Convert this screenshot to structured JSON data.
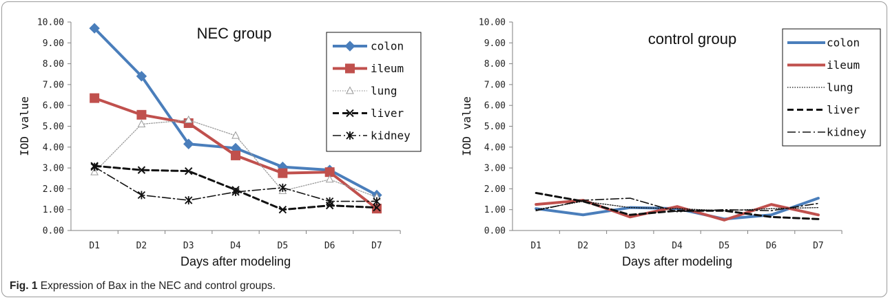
{
  "caption": {
    "label": "Fig. 1",
    "text": " Expression of Bax in the NEC and control groups."
  },
  "chart_data": [
    {
      "type": "line",
      "title": "NEC group",
      "xlabel": "Days after modeling",
      "ylabel": "IOD value",
      "categories": [
        "D1",
        "D2",
        "D3",
        "D4",
        "D5",
        "D6",
        "D7"
      ],
      "ylim": [
        0,
        10
      ],
      "yticks": [
        "0.00",
        "1.00",
        "2.00",
        "3.00",
        "4.00",
        "5.00",
        "6.00",
        "7.00",
        "8.00",
        "9.00",
        "10.00"
      ],
      "grid": false,
      "legend_position": "top-right",
      "series": [
        {
          "name": "colon",
          "values": [
            9.7,
            7.4,
            4.15,
            3.95,
            3.05,
            2.9,
            1.7
          ],
          "color": "#4a7ebb",
          "style": "solid-thick",
          "marker": "diamond"
        },
        {
          "name": "ileum",
          "values": [
            6.35,
            5.55,
            5.15,
            3.6,
            2.75,
            2.8,
            1.05
          ],
          "color": "#c0504d",
          "style": "solid-thick",
          "marker": "square"
        },
        {
          "name": "lung",
          "values": [
            2.8,
            5.1,
            5.3,
            4.55,
            1.9,
            2.45,
            1.6
          ],
          "color": "#9a9a9a",
          "style": "dotted",
          "marker": "triangle"
        },
        {
          "name": "liver",
          "values": [
            3.1,
            2.9,
            2.85,
            1.95,
            1.0,
            1.2,
            1.1
          ],
          "color": "#111111",
          "style": "dashed-thick",
          "marker": "x"
        },
        {
          "name": "kidney",
          "values": [
            3.05,
            1.7,
            1.45,
            1.85,
            2.05,
            1.4,
            1.4
          ],
          "color": "#111111",
          "style": "dashdot",
          "marker": "star"
        }
      ]
    },
    {
      "type": "line",
      "title": "control group",
      "xlabel": "Days after modeling",
      "ylabel": "IOD value",
      "categories": [
        "D1",
        "D2",
        "D3",
        "D4",
        "D5",
        "D6",
        "D7"
      ],
      "ylim": [
        0,
        10
      ],
      "yticks": [
        "0.00",
        "1.00",
        "2.00",
        "3.00",
        "4.00",
        "5.00",
        "6.00",
        "7.00",
        "8.00",
        "9.00",
        "10.00"
      ],
      "grid": false,
      "legend_position": "top-right",
      "series": [
        {
          "name": "colon",
          "values": [
            1.05,
            0.75,
            1.1,
            1.05,
            0.55,
            0.75,
            1.55
          ],
          "color": "#4a7ebb",
          "style": "solid-thick",
          "marker": "none"
        },
        {
          "name": "ileum",
          "values": [
            1.25,
            1.45,
            0.65,
            1.15,
            0.5,
            1.25,
            0.75
          ],
          "color": "#c0504d",
          "style": "solid-thick",
          "marker": "none"
        },
        {
          "name": "lung",
          "values": [
            1.0,
            1.4,
            1.1,
            1.05,
            0.95,
            1.05,
            1.1
          ],
          "color": "#111111",
          "style": "dotted",
          "marker": "none"
        },
        {
          "name": "liver",
          "values": [
            1.8,
            1.4,
            0.75,
            0.95,
            0.95,
            0.65,
            0.55
          ],
          "color": "#111111",
          "style": "dashed-thick",
          "marker": "none"
        },
        {
          "name": "kidney",
          "values": [
            0.95,
            1.45,
            1.55,
            0.9,
            1.0,
            0.95,
            1.3
          ],
          "color": "#111111",
          "style": "dashdot",
          "marker": "none"
        }
      ]
    }
  ]
}
